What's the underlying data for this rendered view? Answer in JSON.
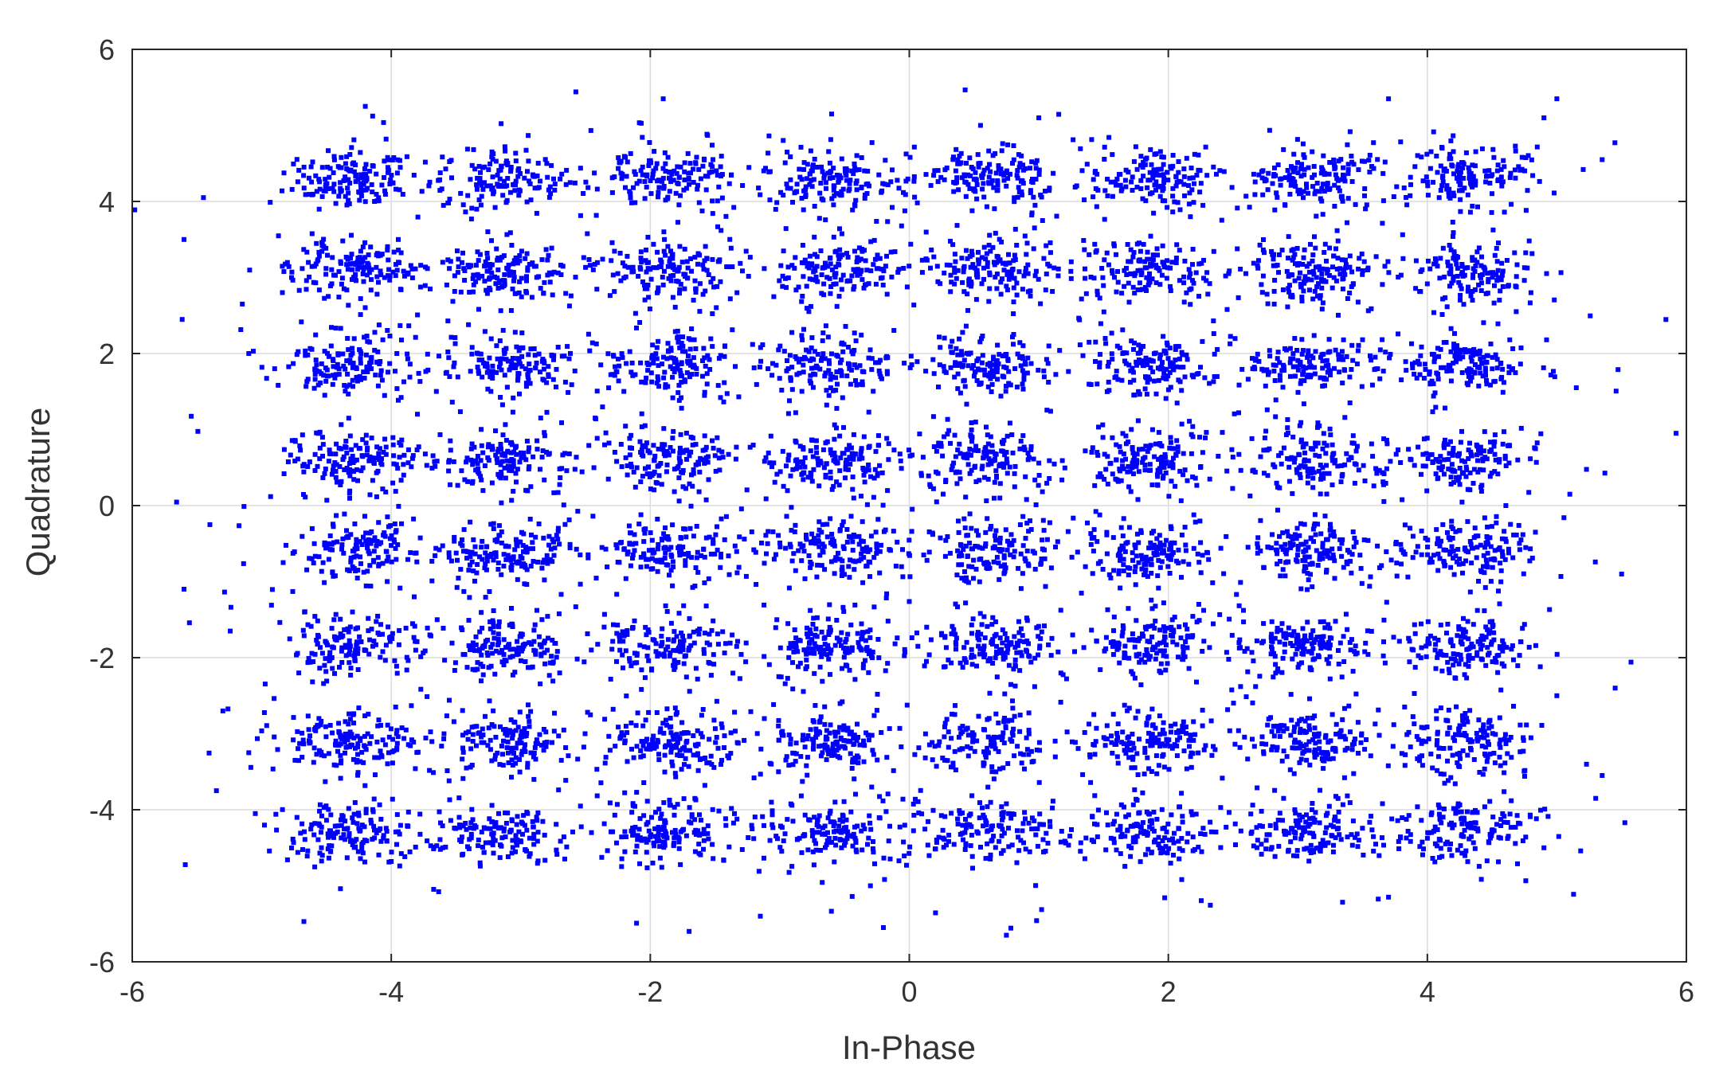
{
  "chart_data": {
    "type": "scatter",
    "title": "",
    "xlabel": "In-Phase",
    "ylabel": "Quadrature",
    "xlim": [
      -6,
      6
    ],
    "ylim": [
      -6,
      6
    ],
    "xticks": [
      -6,
      -4,
      -2,
      0,
      2,
      4,
      6
    ],
    "yticks": [
      -6,
      -4,
      -2,
      0,
      2,
      4,
      6
    ],
    "xtick_labels": [
      "-6",
      "-4",
      "-2",
      "0",
      "2",
      "4",
      "6"
    ],
    "ytick_labels": [
      "-6",
      "-4",
      "-2",
      "0",
      "2",
      "4",
      "6"
    ],
    "grid": true,
    "legend": "none",
    "marker_color": "#0000ff",
    "constellation": "64-QAM",
    "cluster_centers_x": [
      -4.3,
      -3.1,
      -1.85,
      -0.6,
      0.6,
      1.85,
      3.1,
      4.3
    ],
    "cluster_centers_y": [
      4.3,
      3.1,
      1.85,
      0.6,
      -0.6,
      -1.85,
      -3.1,
      -4.3
    ],
    "cluster_std_x": 0.25,
    "cluster_std_y": 0.19,
    "outlier_points": [
      [
        -5.6,
        3.5
      ],
      [
        -5.45,
        4.05
      ],
      [
        -5.6,
        -1.1
      ],
      [
        -5.4,
        -0.25
      ],
      [
        -5.3,
        -2.7
      ],
      [
        -5.15,
        2.65
      ],
      [
        -5.1,
        2.0
      ],
      [
        -5.1,
        -3.25
      ],
      [
        -5.05,
        -4.05
      ],
      [
        -4.2,
        5.25
      ],
      [
        -1.9,
        5.35
      ],
      [
        -0.6,
        5.15
      ],
      [
        0.55,
        5.0
      ],
      [
        1.0,
        5.1
      ],
      [
        -1.7,
        -5.6
      ],
      [
        -1.15,
        -5.4
      ],
      [
        -0.2,
        -5.55
      ],
      [
        0.75,
        -5.65
      ],
      [
        3.7,
        5.35
      ],
      [
        5.0,
        5.35
      ],
      [
        5.35,
        4.55
      ],
      [
        5.15,
        1.55
      ],
      [
        5.1,
        0.15
      ],
      [
        5.5,
        -0.9
      ],
      [
        5.45,
        -2.4
      ],
      [
        5.35,
        -3.55
      ],
      [
        5.3,
        -3.85
      ],
      [
        4.9,
        -4.5
      ],
      [
        3.7,
        -5.15
      ],
      [
        -5.35,
        -3.75
      ],
      [
        4.8,
        2.8
      ],
      [
        4.9,
        5.1
      ],
      [
        -4.9,
        1.8
      ],
      [
        5.0,
        -2.5
      ],
      [
        -0.3,
        -5.0
      ]
    ]
  }
}
